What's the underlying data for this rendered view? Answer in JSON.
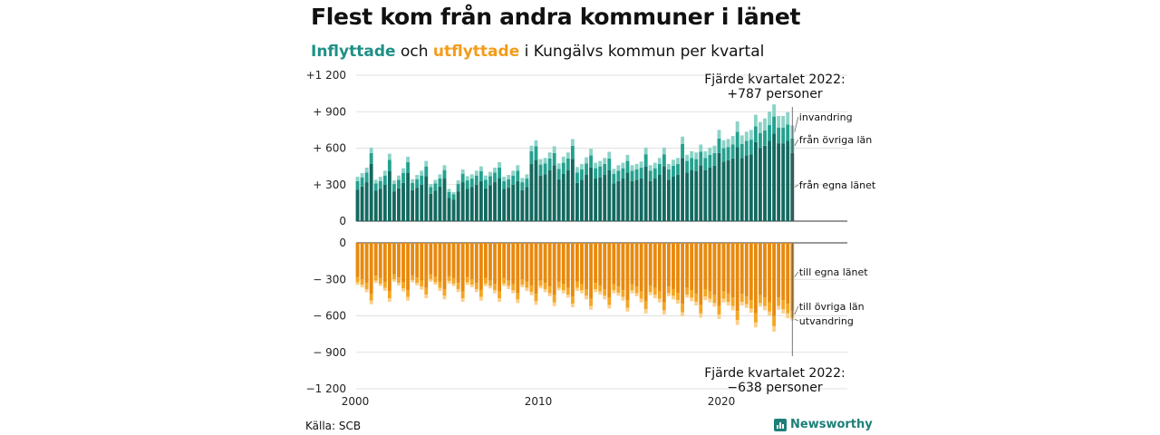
{
  "title": "Flest kom från andra kommuner i länet",
  "subtitle": {
    "in_word": "Inflyttade",
    "and_word": "och",
    "out_word": "utflyttade",
    "rest": "i Kungälvs kommun per kvartal"
  },
  "source": "Källa: SCB",
  "brand": "Newsworthy",
  "colors": {
    "in_dark": "#13695f",
    "in_mid": "#24a18f",
    "in_light": "#8bd3c7",
    "out_dark": "#e8890d",
    "out_mid": "#f5a623",
    "out_light": "#fcd08a",
    "brand": "#1d7f76"
  },
  "chart_data": {
    "type": "bar",
    "stacked": true,
    "x_start": 2000,
    "x_end": 2022,
    "quarters_per_year": 4,
    "x_ticks": [
      "2000",
      "2010",
      "2020"
    ],
    "top_panel": {
      "y_ticks": [
        "+1 200",
        "+ 900",
        "+ 600",
        "+ 300",
        "0"
      ],
      "ylim": [
        0,
        1200
      ],
      "series": [
        {
          "name": "från egna länet",
          "values": [
            260,
            285,
            320,
            470,
            250,
            265,
            300,
            410,
            245,
            270,
            315,
            395,
            255,
            275,
            300,
            370,
            225,
            250,
            285,
            350,
            190,
            175,
            245,
            320,
            265,
            280,
            300,
            330,
            270,
            295,
            320,
            355,
            265,
            275,
            300,
            330,
            255,
            280,
            470,
            505,
            375,
            385,
            420,
            460,
            345,
            390,
            420,
            510,
            315,
            340,
            380,
            440,
            350,
            360,
            380,
            420,
            310,
            330,
            350,
            400,
            330,
            340,
            350,
            450,
            330,
            350,
            380,
            450,
            340,
            365,
            380,
            520,
            400,
            420,
            410,
            460,
            420,
            440,
            455,
            560,
            490,
            500,
            515,
            610,
            520,
            540,
            550,
            650,
            600,
            620,
            660,
            720,
            640,
            640,
            660,
            560
          ]
        },
        {
          "name": "från övriga län",
          "values": [
            70,
            75,
            80,
            90,
            60,
            65,
            75,
            95,
            60,
            70,
            80,
            90,
            60,
            70,
            75,
            80,
            55,
            60,
            65,
            70,
            50,
            45,
            60,
            70,
            70,
            70,
            75,
            80,
            70,
            75,
            80,
            85,
            65,
            70,
            75,
            85,
            65,
            70,
            105,
            110,
            90,
            90,
            95,
            100,
            85,
            90,
            95,
            110,
            85,
            85,
            95,
            100,
            85,
            90,
            90,
            95,
            80,
            85,
            85,
            95,
            85,
            85,
            90,
            100,
            85,
            85,
            90,
            100,
            85,
            90,
            90,
            115,
            95,
            100,
            100,
            110,
            100,
            105,
            105,
            120,
            110,
            110,
            115,
            125,
            115,
            120,
            120,
            130,
            125,
            125,
            130,
            140,
            130,
            130,
            135,
            120
          ]
        },
        {
          "name": "invandring",
          "values": [
            35,
            35,
            40,
            45,
            30,
            35,
            40,
            50,
            30,
            35,
            40,
            45,
            30,
            35,
            40,
            45,
            25,
            30,
            35,
            40,
            25,
            20,
            30,
            35,
            35,
            35,
            40,
            40,
            35,
            35,
            40,
            45,
            35,
            35,
            40,
            45,
            35,
            35,
            45,
            50,
            45,
            45,
            50,
            55,
            45,
            50,
            50,
            55,
            45,
            45,
            50,
            55,
            45,
            45,
            50,
            55,
            40,
            45,
            45,
            50,
            45,
            45,
            50,
            55,
            45,
            45,
            50,
            55,
            45,
            50,
            50,
            60,
            50,
            55,
            55,
            60,
            55,
            60,
            60,
            70,
            65,
            65,
            70,
            85,
            70,
            75,
            80,
            95,
            90,
            100,
            110,
            100,
            95,
            95,
            100,
            107
          ]
        }
      ],
      "annotation": "Fjärde kvartalet 2022:\n+787 personer"
    },
    "bottom_panel": {
      "y_ticks": [
        "0",
        "− 300",
        "− 600",
        "− 900",
        "−1 200"
      ],
      "ylim": [
        -1200,
        0
      ],
      "series": [
        {
          "name": "till egna länet",
          "values": [
            -280,
            -300,
            -330,
            -420,
            -270,
            -290,
            -320,
            -400,
            -260,
            -285,
            -325,
            -390,
            -265,
            -285,
            -310,
            -370,
            -260,
            -280,
            -320,
            -380,
            -275,
            -290,
            -330,
            -400,
            -280,
            -300,
            -330,
            -390,
            -290,
            -310,
            -340,
            -400,
            -290,
            -310,
            -340,
            -410,
            -300,
            -320,
            -350,
            -420,
            -310,
            -330,
            -360,
            -430,
            -320,
            -340,
            -370,
            -440,
            -320,
            -340,
            -380,
            -460,
            -330,
            -350,
            -380,
            -450,
            -340,
            -360,
            -390,
            -470,
            -340,
            -360,
            -400,
            -480,
            -350,
            -370,
            -400,
            -490,
            -360,
            -380,
            -410,
            -500,
            -370,
            -390,
            -420,
            -510,
            -380,
            -400,
            -430,
            -520,
            -400,
            -420,
            -450,
            -560,
            -420,
            -440,
            -470,
            -580,
            -430,
            -450,
            -490,
            -600,
            -450,
            -470,
            -500,
            -560
          ]
        },
        {
          "name": "till övriga län",
          "values": [
            -45,
            -45,
            -50,
            -55,
            -40,
            -45,
            -50,
            -55,
            -40,
            -45,
            -50,
            -55,
            -40,
            -45,
            -50,
            -55,
            -40,
            -45,
            -50,
            -55,
            -40,
            -45,
            -50,
            -55,
            -45,
            -45,
            -50,
            -55,
            -45,
            -45,
            -50,
            -55,
            -45,
            -45,
            -50,
            -55,
            -45,
            -50,
            -55,
            -60,
            -45,
            -50,
            -55,
            -60,
            -50,
            -50,
            -55,
            -60,
            -50,
            -50,
            -55,
            -60,
            -50,
            -50,
            -55,
            -60,
            -50,
            -50,
            -55,
            -65,
            -50,
            -55,
            -60,
            -65,
            -55,
            -55,
            -60,
            -65,
            -55,
            -55,
            -60,
            -70,
            -55,
            -60,
            -65,
            -70,
            -60,
            -60,
            -65,
            -70,
            -60,
            -65,
            -70,
            -75,
            -65,
            -65,
            -70,
            -75,
            -65,
            -70,
            -75,
            -85,
            -70,
            -75,
            -80,
            -55
          ]
        },
        {
          "name": "utvandring",
          "values": [
            -20,
            -20,
            -25,
            -30,
            -20,
            -20,
            -25,
            -30,
            -20,
            -20,
            -25,
            -30,
            -20,
            -20,
            -25,
            -30,
            -20,
            -20,
            -25,
            -30,
            -20,
            -20,
            -25,
            -30,
            -20,
            -20,
            -25,
            -30,
            -20,
            -20,
            -25,
            -30,
            -20,
            -25,
            -25,
            -30,
            -20,
            -25,
            -25,
            -30,
            -20,
            -25,
            -25,
            -30,
            -20,
            -25,
            -25,
            -30,
            -25,
            -25,
            -30,
            -30,
            -25,
            -25,
            -30,
            -30,
            -25,
            -25,
            -30,
            -30,
            -25,
            -25,
            -30,
            -35,
            -25,
            -30,
            -30,
            -35,
            -25,
            -30,
            -30,
            -35,
            -25,
            -30,
            -30,
            -35,
            -30,
            -30,
            -30,
            -35,
            -30,
            -30,
            -35,
            -40,
            -30,
            -30,
            -35,
            -40,
            -30,
            -35,
            -35,
            -45,
            -30,
            -35,
            -40,
            -23
          ]
        }
      ],
      "annotation": "Fjärde kvartalet 2022:\n−638 personer"
    }
  }
}
